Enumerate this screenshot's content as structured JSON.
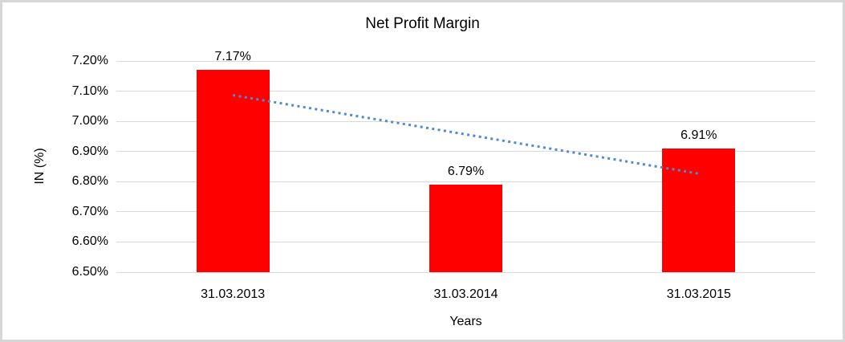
{
  "chart_data": {
    "type": "bar",
    "title": "Net Profit Margin",
    "xlabel": "Years",
    "ylabel": "IN (%)",
    "categories": [
      "31.03.2013",
      "31.03.2014",
      "31.03.2015"
    ],
    "values": [
      7.17,
      6.79,
      6.91
    ],
    "data_labels": [
      "7.17%",
      "6.79%",
      "6.91%"
    ],
    "yticks": [
      {
        "value": 7.2,
        "label": "7.20%"
      },
      {
        "value": 7.1,
        "label": "7.10%"
      },
      {
        "value": 7.0,
        "label": "7.00%"
      },
      {
        "value": 6.9,
        "label": "6.90%"
      },
      {
        "value": 6.8,
        "label": "6.80%"
      },
      {
        "value": 6.7,
        "label": "6.70%"
      },
      {
        "value": 6.6,
        "label": "6.60%"
      },
      {
        "value": 6.5,
        "label": "6.50%"
      }
    ],
    "ylim": [
      6.5,
      7.2
    ],
    "grid": true,
    "legend": false,
    "bar_color": "#ff0000",
    "gridline_color": "#d9d9d9",
    "trendline": {
      "type": "linear",
      "style": "dotted",
      "color": "#4f8bd0"
    }
  }
}
